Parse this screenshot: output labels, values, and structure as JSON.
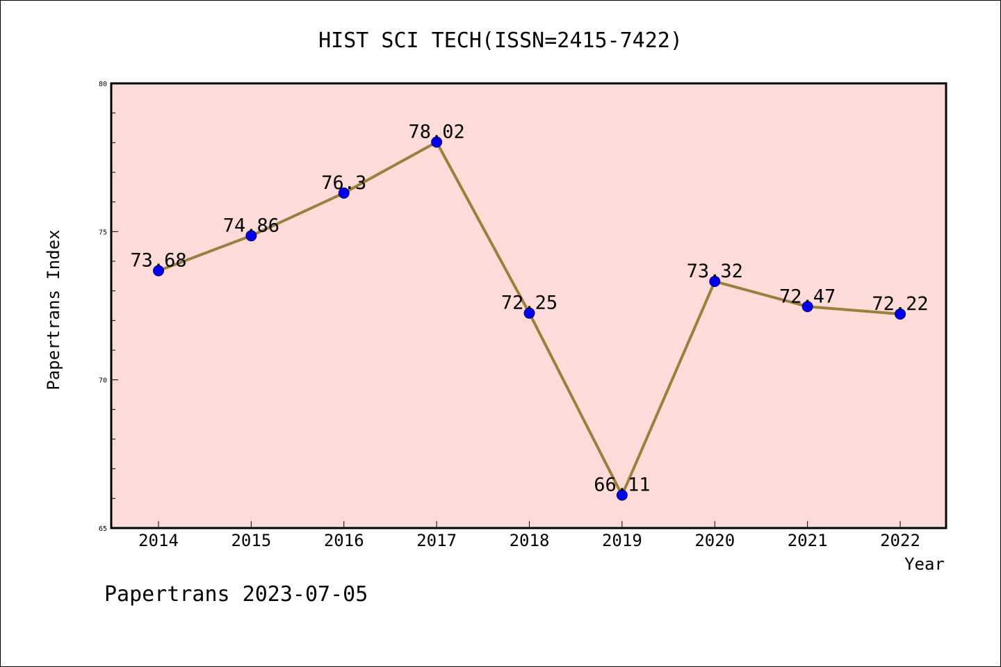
{
  "chart_data": {
    "type": "line",
    "title": "HIST SCI TECH(ISSN=2415-7422)",
    "xlabel": "Year",
    "ylabel": "Papertrans Index",
    "categories": [
      "2014",
      "2015",
      "2016",
      "2017",
      "2018",
      "2019",
      "2020",
      "2021",
      "2022"
    ],
    "series": [
      {
        "values": [
          73.68,
          74.86,
          76.3,
          78.02,
          72.25,
          66.11,
          73.32,
          72.47,
          72.22
        ]
      }
    ],
    "data_labels": [
      "73.68",
      "74.86",
      "76.3",
      "78.02",
      "72.25",
      "66.11",
      "73.32",
      "72.47",
      "72.22"
    ],
    "ylim": [
      65,
      80
    ],
    "yticks": [
      "65",
      "70",
      "75",
      "80"
    ],
    "grid": false,
    "colors": {
      "plot_background": "#fddbd8",
      "line": "#9b7f3c",
      "marker": "#0000ee"
    }
  },
  "footer": "Papertrans 2023-07-05"
}
